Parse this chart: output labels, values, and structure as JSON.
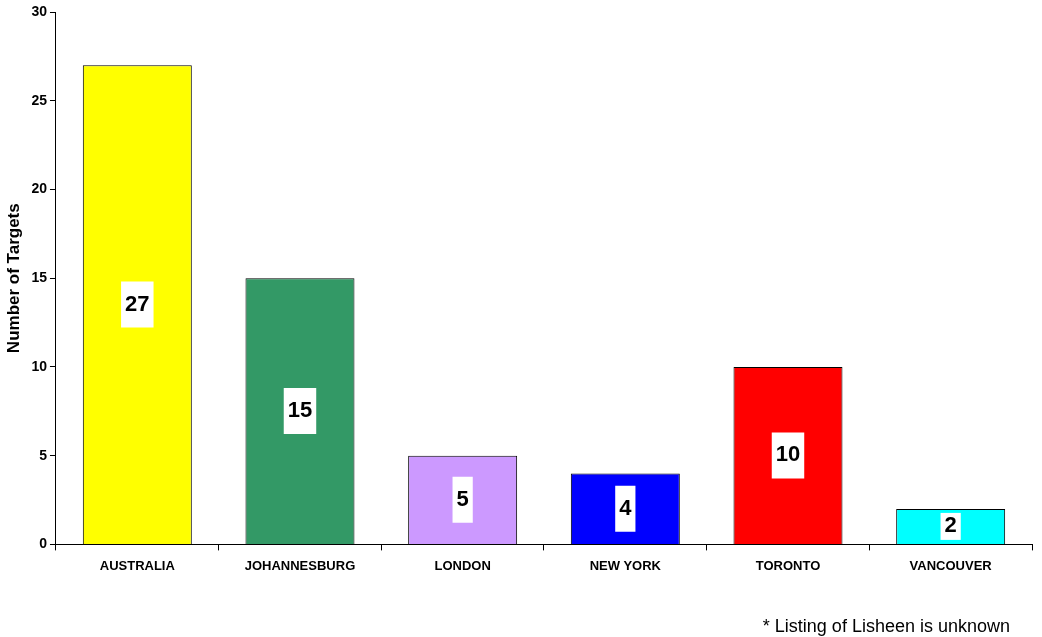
{
  "chart_data": {
    "type": "bar",
    "ylabel": "Number of Targets",
    "categories": [
      "AUSTRALIA",
      "JOHANNESBURG",
      "LONDON",
      "NEW YORK",
      "TORONTO",
      "VANCOUVER"
    ],
    "values": [
      27,
      15,
      5,
      4,
      10,
      2
    ],
    "colors": [
      "#ffff00",
      "#339966",
      "#cc99ff",
      "#0000ff",
      "#ff0000",
      "#00ffff"
    ],
    "ylim": [
      0,
      30
    ],
    "yticks": [
      0,
      5,
      10,
      15,
      20,
      25,
      30
    ],
    "grid": false,
    "legend": false,
    "data_labels": true,
    "annotations": [
      "* Listing of Lisheen is unknown"
    ]
  }
}
